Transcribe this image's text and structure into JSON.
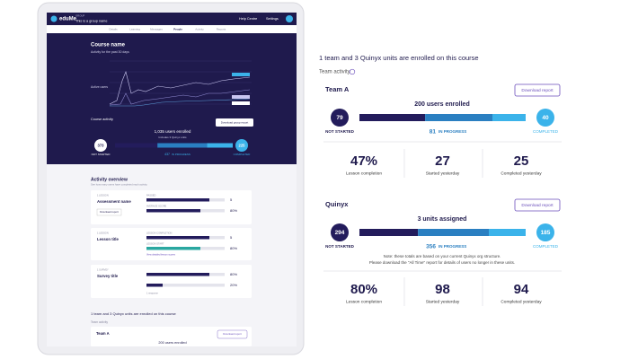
{
  "tablet": {
    "header": {
      "logo": "eduMe",
      "group_label": "GROUP",
      "group_name": "This is a group name",
      "help": "Help Centre",
      "settings": "Settings"
    },
    "tabs": [
      "Details",
      "Learning",
      "Messages",
      "People",
      "Activity",
      "Reports"
    ],
    "course": {
      "title": "Course name",
      "subtitle": "Activity for the past 30 days",
      "y_label": "Active users",
      "activity_label": "Course activity",
      "button": "Download group report",
      "enrolled": "1,035 users enrolled",
      "includes": "Includes 3 Quinyx units",
      "not_started": 373,
      "not_started_label": "NOT STARTED",
      "in_progress": 437,
      "in_progress_label": "IN PROGRESS",
      "completed": 225,
      "completed_label": "COMPLETED"
    },
    "overview": {
      "title": "Activity overview",
      "subtitle": "See how many users have completed each activity",
      "cards": [
        {
          "kind": "1 LESSON",
          "title": "Assessment name",
          "button": "Download report",
          "rows": [
            {
              "label": "PASSED",
              "value": "5"
            },
            {
              "label": "AVERAGE SCORE",
              "value": "80%"
            }
          ]
        },
        {
          "kind": "1 LESSON",
          "title": "Lesson title",
          "rows": [
            {
              "label": "LESSON COMPLETION",
              "value": "5"
            },
            {
              "label": "LESSON START",
              "value": "80%"
            }
          ],
          "link": "View detailed lesson scores"
        },
        {
          "kind": "1 SURVEY",
          "title": "Survey title",
          "rows": [
            {
              "value": "80%"
            },
            {
              "value": "20%"
            }
          ],
          "note": "1 response"
        }
      ]
    },
    "footer": {
      "summary": "1 team and 3 Quinyx units are enrolled on this course",
      "team_activity": "Team activity",
      "team": "Team A",
      "button": "Download report",
      "enrolled": "200 users enrolled"
    }
  },
  "panel": {
    "summary": "1 team and 3 Quinyx units are enrolled on this course",
    "team_activity": "Team activity",
    "teams": [
      {
        "name": "Team A",
        "button": "Download report",
        "enrolled": "200 users enrolled",
        "not_started": 79,
        "not_started_label": "NOT STARTED",
        "in_progress": 81,
        "in_progress_label": "IN PROGRESS",
        "completed": 40,
        "completed_label": "COMPLETED",
        "stats": [
          {
            "value": "47%",
            "label": "Lesson completion"
          },
          {
            "value": "27",
            "label": "Started yesterday"
          },
          {
            "value": "25",
            "label": "Completed yesterday"
          }
        ]
      },
      {
        "name": "Quinyx",
        "button": "Download report",
        "enrolled": "3 units assigned",
        "not_started": 294,
        "not_started_label": "NOT STARTED",
        "in_progress": 356,
        "in_progress_label": "IN PROGRESS",
        "completed": 185,
        "completed_label": "COMPLETED",
        "note": [
          "Note: these totals are based on your current Quinyx org structure.",
          "Please download the \"All Time\" report for details of users no longer in these units."
        ],
        "stats": [
          {
            "value": "80%",
            "label": "Lesson completion"
          },
          {
            "value": "98",
            "label": "Started yesterday"
          },
          {
            "value": "94",
            "label": "Completed yesterday"
          }
        ]
      }
    ]
  }
}
